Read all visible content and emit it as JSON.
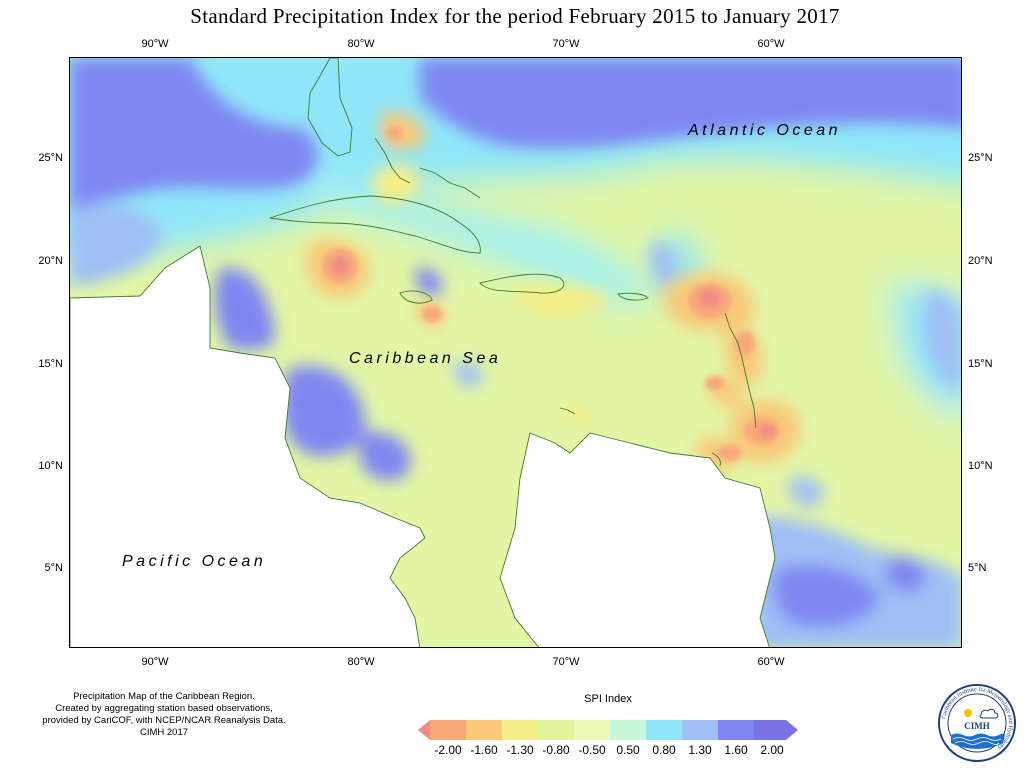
{
  "title": "Standard Precipitation Index for the period February 2015 to January 2017",
  "axes": {
    "top": [
      "90°W",
      "80°W",
      "70°W",
      "60°W"
    ],
    "bottom": [
      "90°W",
      "80°W",
      "70°W",
      "60°W"
    ],
    "left": [
      "25°N",
      "20°N",
      "15°N",
      "10°N",
      "5°N"
    ],
    "right": [
      "25°N",
      "20°N",
      "15°N",
      "10°N",
      "5°N"
    ]
  },
  "map": {
    "lon_range": [
      -94,
      -50
    ],
    "lat_range": [
      1.5,
      30
    ],
    "ocean_labels": [
      "Atlantic Ocean",
      "Caribbean Sea",
      "Pacific Ocean"
    ]
  },
  "credits": {
    "lines": [
      "Precipitation Map of the Caribbean Region.",
      "Created by aggregating station based observations,",
      "provided by CariCOF, with NCEP/NCAR Reanalysis Data.",
      "CIMH 2017"
    ]
  },
  "legend": {
    "title": "SPI Index",
    "labels": [
      "-2.00",
      "-1.60",
      "-1.30",
      "-0.80",
      "-0.50",
      "0.50",
      "0.80",
      "1.30",
      "1.60",
      "2.00"
    ],
    "colors": [
      "#f28b82",
      "#f7a87a",
      "#f9c979",
      "#f6ee86",
      "#dff59c",
      "#e9f9b9",
      "#c8f7d9",
      "#8fe6f9",
      "#9fbff5",
      "#7f86f2",
      "#7a73e8"
    ]
  },
  "logo": {
    "name": "CIMH",
    "ring_text": "Caribbean Institute for Meteorology and Hydrology"
  }
}
